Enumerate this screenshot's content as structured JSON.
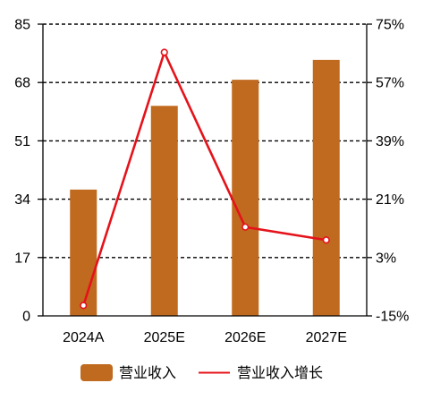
{
  "chart_data": {
    "type": "bar",
    "categories": [
      "2024A",
      "2025E",
      "2026E",
      "2027E"
    ],
    "series": [
      {
        "name": "营业收入",
        "type": "bar",
        "axis": "left",
        "values": [
          36.8,
          61.2,
          68.8,
          74.6
        ],
        "color": "#C06A1F"
      },
      {
        "name": "营业收入增长",
        "type": "line",
        "axis": "right",
        "unit": "%",
        "marker": "circle",
        "values": [
          -11.8,
          66.3,
          12.4,
          8.4
        ],
        "color": "#E5121A"
      }
    ],
    "y_left": {
      "ylim": [
        0,
        85
      ],
      "ticks": [
        0,
        17,
        34,
        51,
        68,
        85
      ]
    },
    "y_right": {
      "ylim": [
        -15,
        75
      ],
      "ticks": [
        -15,
        3,
        21,
        39,
        57,
        75
      ],
      "tick_labels": [
        "-15%",
        "3%",
        "21%",
        "39%",
        "57%",
        "75%"
      ]
    },
    "grid": true,
    "grid_style": "dashed horizontal",
    "legend": "bottom"
  }
}
